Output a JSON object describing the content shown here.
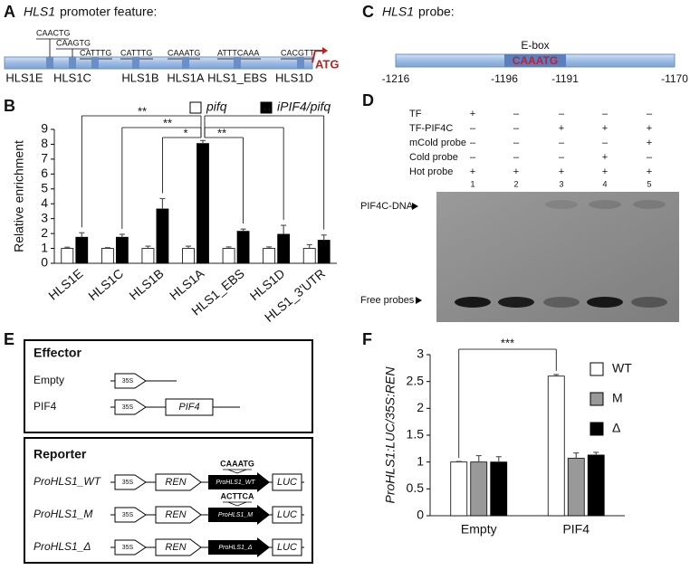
{
  "panel_a": {
    "label": "A",
    "gene": "HLS1",
    "title": "promoter feature:",
    "motifs": [
      "CAACTG",
      "CAAGTG",
      "CATTTG",
      "CATTTG",
      "CAAATG",
      "ATTTCAAA",
      "CACGTT"
    ],
    "regions": [
      "HLS1E",
      "HLS1C",
      "HLS1B",
      "HLS1A",
      "HLS1_EBS",
      "HLS1D"
    ],
    "start": "ATG"
  },
  "panel_c": {
    "label": "C",
    "gene": "HLS1",
    "title": "probe:",
    "box_label": "E-box",
    "motif": "CAAATG",
    "positions": [
      "-1216",
      "-1196",
      "-1191",
      "-1170"
    ]
  },
  "panel_d": {
    "label": "D",
    "rows": [
      {
        "label": "TF",
        "marks": [
          "+",
          "–",
          "–",
          "–",
          "–"
        ]
      },
      {
        "label": "TF-PIF4C",
        "marks": [
          "–",
          "–",
          "+",
          "+",
          "+"
        ]
      },
      {
        "label": "mCold probe",
        "marks": [
          "–",
          "–",
          "–",
          "–",
          "+"
        ]
      },
      {
        "label": "Cold probe",
        "marks": [
          "–",
          "–",
          "–",
          "+",
          "–"
        ]
      },
      {
        "label": "Hot probe",
        "marks": [
          "+",
          "+",
          "+",
          "+",
          "+"
        ]
      }
    ],
    "lanes": [
      1,
      2,
      3,
      4,
      5
    ],
    "complex": "PIF4C-DNA",
    "free": "Free probes"
  },
  "panel_e": {
    "label": "E",
    "effector": {
      "title": "Effector",
      "rows": [
        {
          "label": "Empty",
          "promoter": "35S"
        },
        {
          "label": "PIF4",
          "promoter": "35S",
          "gene": "PIF4"
        }
      ]
    },
    "reporter": {
      "title": "Reporter",
      "rows": [
        {
          "label": "ProHLS1_WT",
          "promoter": "35S",
          "first": "REN",
          "element": "ProHLS1_WT",
          "motif": "CAAATG",
          "second": "LUC"
        },
        {
          "label": "ProHLS1_M",
          "promoter": "35S",
          "first": "REN",
          "element": "ProHLS1_M",
          "motif": "ACTTCA",
          "second": "LUC"
        },
        {
          "label": "ProHLS1_Δ",
          "promoter": "35S",
          "first": "REN",
          "element": "ProHLS1_Δ",
          "second": "LUC"
        }
      ]
    }
  },
  "chart_data": [
    {
      "type": "bar",
      "panel_label": "B",
      "y_label": "Relative enrichment",
      "categories": [
        "HLS1E",
        "HLS1C",
        "HLS1B",
        "HLS1A",
        "HLS1_EBS",
        "HLS1D",
        "HLS1_3'UTR"
      ],
      "series": [
        {
          "name": "pifq",
          "color": "#ffffff",
          "values": [
            1,
            1,
            1,
            1,
            1,
            1,
            1
          ],
          "errors": [
            0.08,
            0.05,
            0.15,
            0.15,
            0.1,
            0.1,
            0.25
          ]
        },
        {
          "name": "iPIF4/pifq",
          "color": "#000000",
          "values": [
            1.75,
            1.75,
            3.65,
            8.05,
            2.15,
            1.95,
            1.55
          ],
          "errors": [
            0.3,
            0.2,
            0.7,
            0.2,
            0.15,
            0.6,
            0.35
          ]
        }
      ],
      "ylim": [
        0,
        9
      ],
      "yticks": [
        0,
        1,
        2,
        3,
        4,
        5,
        6,
        7,
        8,
        9
      ],
      "annotations": [
        "**",
        "**",
        "*",
        "**",
        "**"
      ],
      "legend": "top"
    },
    {
      "type": "bar",
      "panel_label": "F",
      "y_label": "ProHLS1:LUC/35S:REN",
      "categories": [
        "Empty",
        "PIF4"
      ],
      "series": [
        {
          "name": "WT",
          "color": "#ffffff",
          "values": [
            1,
            2.6
          ],
          "errors": [
            0.01,
            0.03
          ]
        },
        {
          "name": "M",
          "color": "#999999",
          "values": [
            1,
            1.07
          ],
          "errors": [
            0.12,
            0.1
          ]
        },
        {
          "name": "Δ",
          "color": "#000000",
          "values": [
            1,
            1.13
          ],
          "errors": [
            0.1,
            0.05
          ]
        }
      ],
      "ylim": [
        0,
        3
      ],
      "yticks": [
        0,
        0.5,
        1,
        1.5,
        2,
        2.5,
        3
      ],
      "annotations": [
        "***"
      ],
      "legend": "right"
    }
  ]
}
